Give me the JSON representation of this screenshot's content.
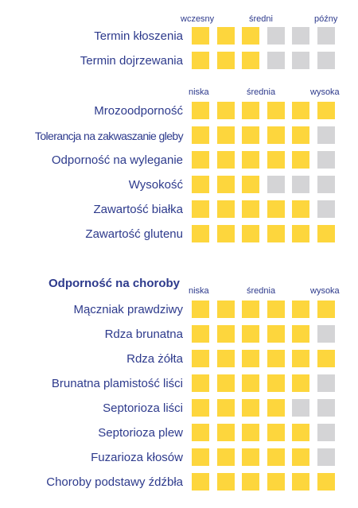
{
  "colors": {
    "on": "#fdd63d",
    "off": "#d4d4d6",
    "text": "#2d3a8c"
  },
  "section1": {
    "scale": {
      "low": "wczesny",
      "mid": "średni",
      "high": "późny"
    },
    "rows": [
      {
        "label": "Termin kłoszenia",
        "level": 3
      },
      {
        "label": "Termin dojrzewania",
        "level": 3
      }
    ]
  },
  "section2": {
    "scale": {
      "low": "niska",
      "mid": "średnia",
      "high": "wysoka"
    },
    "rows": [
      {
        "label": "Mrozoodporność",
        "level": 6
      },
      {
        "label": "Tolerancja na zakwaszanie gleby",
        "level": 5
      },
      {
        "label": "Odporność na wyleganie",
        "level": 5
      },
      {
        "label": "Wysokość",
        "level": 3
      },
      {
        "label": "Zawartość białka",
        "level": 5
      },
      {
        "label": "Zawartość glutenu",
        "level": 6
      }
    ]
  },
  "section3": {
    "heading": "Odporność na choroby",
    "scale": {
      "low": "niska",
      "mid": "średnia",
      "high": "wysoka"
    },
    "rows": [
      {
        "label": "Mączniak prawdziwy",
        "level": 6
      },
      {
        "label": "Rdza brunatna",
        "level": 5
      },
      {
        "label": "Rdza żółta",
        "level": 6
      },
      {
        "label": "Brunatna plamistość liści",
        "level": 5
      },
      {
        "label": "Septorioza liści",
        "level": 4
      },
      {
        "label": "Septorioza plew",
        "level": 5
      },
      {
        "label": "Fuzarioza kłosów",
        "level": 5
      },
      {
        "label": "Choroby podstawy źdźbła",
        "level": 6
      }
    ]
  }
}
